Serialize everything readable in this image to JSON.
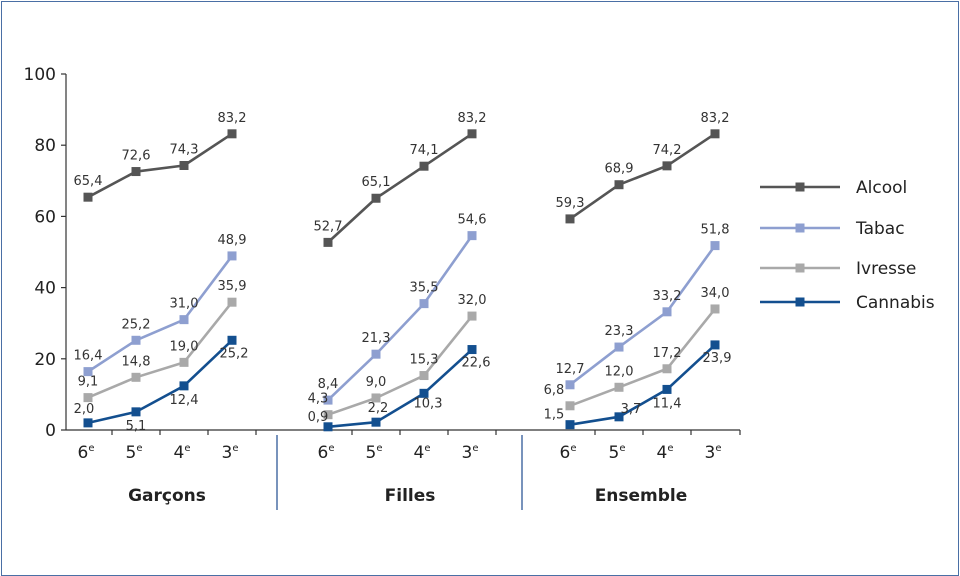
{
  "chart_data": {
    "type": "line",
    "ylim": [
      0,
      100
    ],
    "yticks": [
      0,
      20,
      40,
      60,
      80,
      100
    ],
    "grades": [
      {
        "base": "6",
        "sup": "e"
      },
      {
        "base": "5",
        "sup": "e"
      },
      {
        "base": "4",
        "sup": "e"
      },
      {
        "base": "3",
        "sup": "e"
      }
    ],
    "legend_position": "right",
    "series_styles": [
      {
        "name": "Alcool",
        "color": "#555555"
      },
      {
        "name": "Tabac",
        "color": "#8e9fd0"
      },
      {
        "name": "Ivresse",
        "color": "#a9a9a9"
      },
      {
        "name": "Cannabis",
        "color": "#134f8f"
      }
    ],
    "panels": [
      {
        "title": "Garçons",
        "series": [
          {
            "name": "Alcool",
            "values": [
              65.4,
              72.6,
              74.3,
              83.2
            ],
            "labels": [
              "65,4",
              "72,6",
              "74,3",
              "83,2"
            ]
          },
          {
            "name": "Tabac",
            "values": [
              16.4,
              25.2,
              31.0,
              48.9
            ],
            "labels": [
              "16,4",
              "25,2",
              "31,0",
              "48,9"
            ]
          },
          {
            "name": "Ivresse",
            "values": [
              9.1,
              14.8,
              19.0,
              35.9
            ],
            "labels": [
              "9,1",
              "14,8",
              "19,0",
              "35,9"
            ]
          },
          {
            "name": "Cannabis",
            "values": [
              2.0,
              5.1,
              12.4,
              25.2
            ],
            "labels": [
              "2,0",
              "5,1",
              "12,4",
              "25,2"
            ]
          }
        ]
      },
      {
        "title": "Filles",
        "series": [
          {
            "name": "Alcool",
            "values": [
              52.7,
              65.1,
              74.1,
              83.2
            ],
            "labels": [
              "52,7",
              "65,1",
              "74,1",
              "83,2"
            ]
          },
          {
            "name": "Tabac",
            "values": [
              8.4,
              21.3,
              35.5,
              54.6
            ],
            "labels": [
              "8,4",
              "21,3",
              "35,5",
              "54,6"
            ]
          },
          {
            "name": "Ivresse",
            "values": [
              4.3,
              9.0,
              15.3,
              32.0
            ],
            "labels": [
              "4,3",
              "9,0",
              "15,3",
              "32,0"
            ]
          },
          {
            "name": "Cannabis",
            "values": [
              0.9,
              2.2,
              10.3,
              22.6
            ],
            "labels": [
              "0,9",
              "2,2",
              "10,3",
              "22,6"
            ]
          }
        ]
      },
      {
        "title": "Ensemble",
        "series": [
          {
            "name": "Alcool",
            "values": [
              59.3,
              68.9,
              74.2,
              83.2
            ],
            "labels": [
              "59,3",
              "68,9",
              "74,2",
              "83,2"
            ]
          },
          {
            "name": "Tabac",
            "values": [
              12.7,
              23.3,
              33.2,
              51.8
            ],
            "labels": [
              "12,7",
              "23,3",
              "33,2",
              "51,8"
            ]
          },
          {
            "name": "Ivresse",
            "values": [
              6.8,
              12.0,
              17.2,
              34.0
            ],
            "labels": [
              "6,8",
              "12,0",
              "17,2",
              "34,0"
            ]
          },
          {
            "name": "Cannabis",
            "values": [
              1.5,
              3.7,
              11.4,
              23.9
            ],
            "labels": [
              "1,5",
              "3,7",
              "11,4",
              "23,9"
            ]
          }
        ]
      }
    ]
  }
}
